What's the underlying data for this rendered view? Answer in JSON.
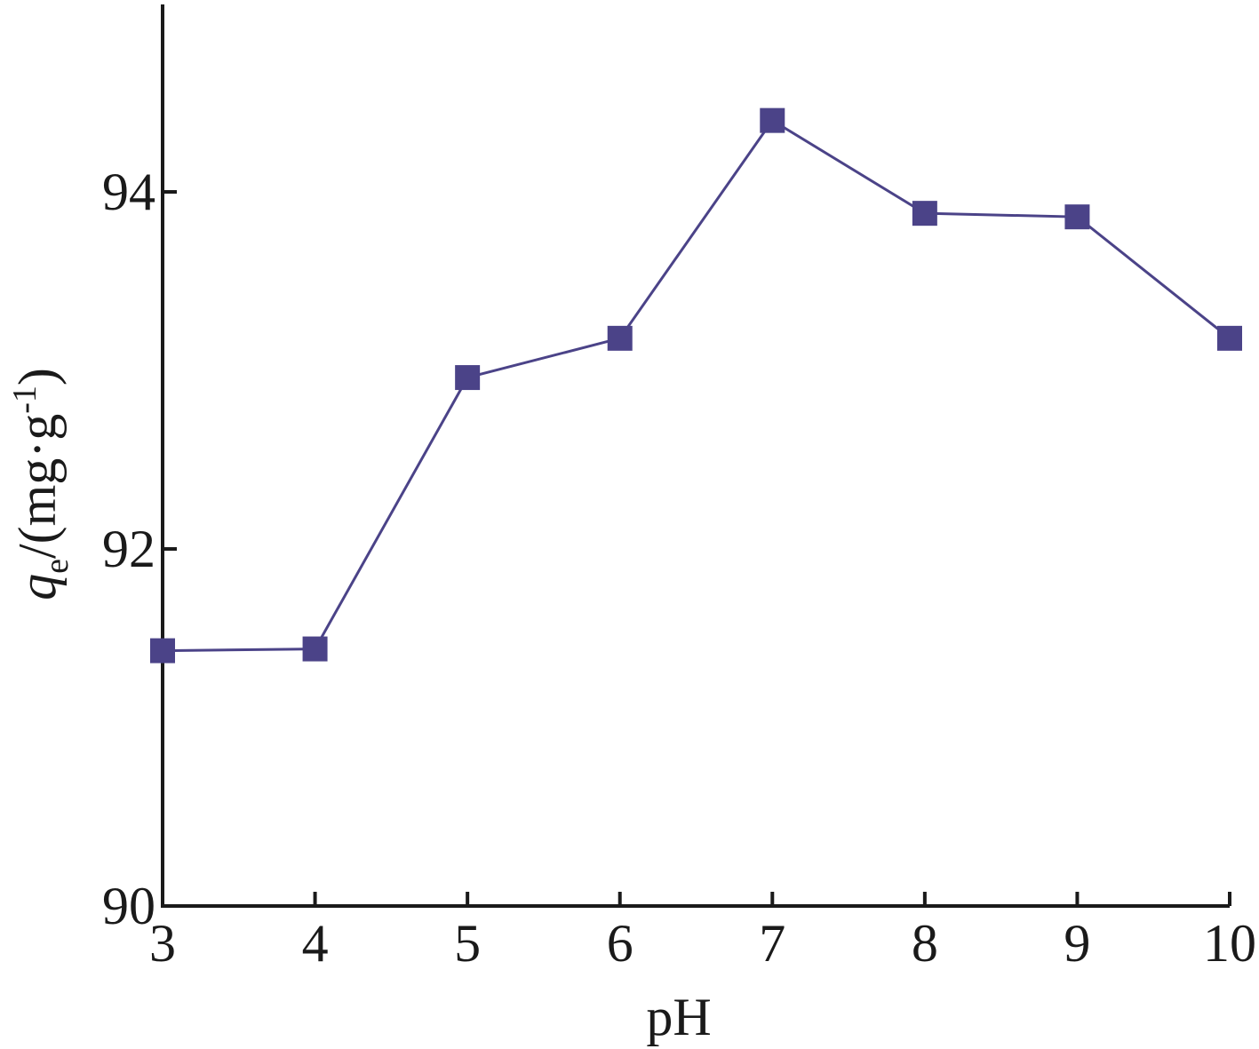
{
  "chart_data": {
    "type": "line",
    "xlabel": "pH",
    "ylabel": {
      "symbol": "q",
      "subscript": "e",
      "unit_prefix": "/(mg·g",
      "superscript": "-1",
      "unit_suffix": ")"
    },
    "xlim": [
      3,
      10
    ],
    "ylim": [
      90,
      95.05
    ],
    "x_ticks": [
      3,
      4,
      5,
      6,
      7,
      8,
      9,
      10
    ],
    "y_ticks": [
      90,
      92,
      94
    ],
    "grid": false,
    "legend": "none",
    "series": [
      {
        "x": [
          3,
          4,
          5,
          6,
          7,
          8,
          9,
          10
        ],
        "values": [
          91.43,
          91.44,
          92.96,
          93.18,
          94.4,
          93.88,
          93.86,
          93.18
        ],
        "marker": "square",
        "color": "#4b4388"
      }
    ]
  }
}
